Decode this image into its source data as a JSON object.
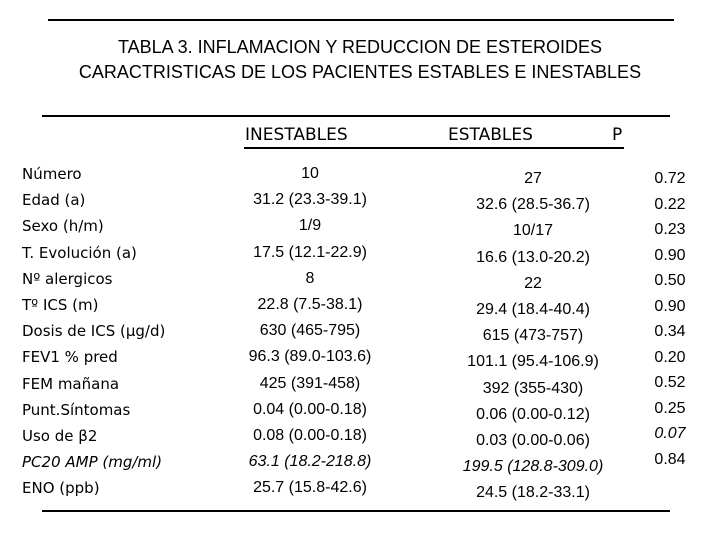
{
  "title": {
    "line1": "TABLA 3. INFLAMACION Y REDUCCION  DE ESTEROIDES",
    "line2": "CARACTRISTICAS DE LOS PACIENTES ESTABLES E INESTABLES"
  },
  "headers": {
    "inestables": "INESTABLES",
    "estables": "ESTABLES",
    "p": "P"
  },
  "rows": [
    {
      "label": "Número",
      "inestables": "10",
      "estables": "27",
      "p": "0.72",
      "italic": false
    },
    {
      "label": "Edad  (a)",
      "inestables": "31.2 (23.3-39.1)",
      "estables": "32.6 (28.5-36.7)",
      "p": "0.22",
      "italic": false
    },
    {
      "label": "Sexo (h/m)",
      "inestables": "1/9",
      "estables": "10/17",
      "p": "0.23",
      "italic": false
    },
    {
      "label": "T. Evolución (a)",
      "inestables": "17.5 (12.1-22.9)",
      "estables": "16.6 (13.0-20.2)",
      "p": "0.90",
      "italic": false
    },
    {
      "label": "Nº alergicos",
      "inestables": "8",
      "estables": "22",
      "p": "0.50",
      "italic": false
    },
    {
      "label": "Tº ICS (m)",
      "inestables": "22.8 (7.5-38.1)",
      "estables": "29.4 (18.4-40.4)",
      "p": "0.90",
      "italic": false
    },
    {
      "label": "Dosis de ICS (μg/d)",
      "inestables": "630 (465-795)",
      "estables": "615 (473-757)",
      "p": "0.34",
      "italic": false
    },
    {
      "label": "FEV1 % pred",
      "inestables": "96.3 (89.0-103.6)",
      "estables": "101.1 (95.4-106.9)",
      "p": "0.20",
      "italic": false
    },
    {
      "label": "FEM mañana",
      "inestables": "425 (391-458)",
      "estables": "392 (355-430)",
      "p": "0.52",
      "italic": false
    },
    {
      "label": "Punt.Síntomas",
      "inestables": "0.04 (0.00-0.18)",
      "estables": "0.06 (0.00-0.12)",
      "p": "0.25",
      "italic": false
    },
    {
      "label": "Uso de β2",
      "inestables": "0.08 (0.00-0.18)",
      "estables": "0.03 (0.00-0.06)",
      "p": "0.07",
      "italic": false
    },
    {
      "label": "PC20 AMP (mg/ml)",
      "inestables": "63.1 (18.2-218.8)",
      "estables": "199.5 (128.8-309.0)",
      "p": "0.84",
      "italic": true
    },
    {
      "label": "ENO (ppb)",
      "inestables": "25.7 (15.8-42.6)",
      "estables": "24.5 (18.2-33.1)",
      "p": "",
      "italic": false
    }
  ],
  "p_italic_index": 10
}
